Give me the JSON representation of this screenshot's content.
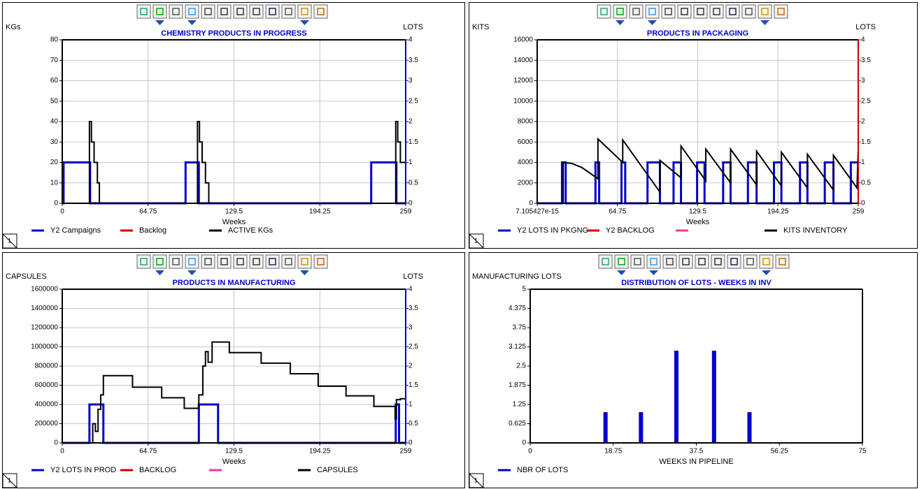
{
  "chart_data": [
    {
      "type": "line",
      "title": "CHEMISTRY PRODUCTS IN PROGRESS",
      "y_label": "KGs",
      "y2_label": "LOTS",
      "x_label": "Weeks",
      "tab": "1",
      "xlim": [
        0,
        259
      ],
      "xticks": [
        0,
        64.75,
        129.5,
        194.25,
        259
      ],
      "ylim": [
        0,
        80
      ],
      "yticks": [
        0,
        10,
        20,
        30,
        40,
        50,
        60,
        70,
        80
      ],
      "y2lim": [
        0,
        4
      ],
      "y2ticks": [
        0,
        0.5,
        1,
        1.5,
        2,
        2.5,
        3,
        3.5,
        4
      ],
      "y2_color": "#0000cc",
      "grid": true,
      "series": [
        {
          "name": "Y2 Campaigns",
          "color": "#0000cc",
          "width": 3,
          "axis": "y2",
          "step": true,
          "x": [
            0,
            1,
            21,
            93,
            103,
            233,
            252,
            259
          ],
          "values": [
            0,
            1,
            0,
            1,
            0,
            1,
            0,
            0
          ]
        },
        {
          "name": "Backlog",
          "color": "#cc0000",
          "width": 1.5,
          "step": true,
          "x": [
            0,
            259
          ],
          "values": [
            0,
            0
          ]
        },
        {
          "name": "ACTIVE KGs",
          "color": "#000000",
          "width": 2,
          "step": true,
          "x": [
            0,
            20.5,
            22,
            24,
            26.5,
            28,
            102,
            103.5,
            105.5,
            108,
            110.5,
            251.5,
            253,
            255,
            259
          ],
          "values": [
            0,
            40,
            30,
            20,
            10,
            0,
            40,
            30,
            20,
            10,
            0,
            40,
            30,
            20,
            20
          ]
        }
      ]
    },
    {
      "type": "line",
      "title": "PRODUCTS IN PACKAGING",
      "y_label": "KITS",
      "y2_label": "LOTS",
      "x_label": "Weeks",
      "tab": "1",
      "xlim": [
        7.105427e-15,
        259
      ],
      "xticks": [
        7.105427e-15,
        64.75,
        129.5,
        194.25,
        259
      ],
      "ylim": [
        0,
        16000
      ],
      "yticks": [
        0,
        2000,
        4000,
        6000,
        8000,
        10000,
        12000,
        14000,
        16000
      ],
      "y2lim": [
        0,
        4
      ],
      "y2ticks": [
        0,
        0.5,
        1,
        1.5,
        2,
        2.5,
        3,
        3.5,
        4
      ],
      "y2_color": "#cc0000",
      "grid": true,
      "series": [
        {
          "name": "Y2 LOTS IN PKGNG",
          "color": "#0000cc",
          "width": 3,
          "axis": "y2",
          "step": true,
          "x": [
            0,
            20,
            23,
            47,
            50,
            68,
            71,
            89,
            99,
            110,
            116,
            129,
            135,
            150,
            156,
            170,
            177,
            191,
            197,
            212,
            218,
            232,
            239,
            253,
            259
          ],
          "values": [
            0,
            1,
            0,
            1,
            0,
            1,
            0,
            1,
            0,
            1,
            0,
            1,
            0,
            1,
            0,
            1,
            0,
            1,
            0,
            1,
            0,
            1,
            0,
            1,
            1
          ]
        },
        {
          "name": "Y2 BACKLOG",
          "color": "#cc0000",
          "width": 1.5,
          "axis": "y2",
          "step": true,
          "x": [
            0,
            259
          ],
          "values": [
            0,
            0
          ]
        },
        {
          "color": "#ff3399",
          "width": 2,
          "axis": "y2",
          "step": true,
          "x": [
            0,
            259
          ],
          "values": [
            0,
            0
          ]
        },
        {
          "name": "KITS INVENTORY",
          "color": "#000000",
          "width": 2,
          "x": [
            0,
            21,
            21,
            28,
            36,
            42,
            49,
            49,
            69,
            69,
            99,
            99,
            116,
            116,
            136,
            136,
            156,
            156,
            177,
            177,
            197,
            197,
            218,
            218,
            239,
            239,
            258,
            259
          ],
          "values": [
            0,
            0,
            4000,
            3900,
            3500,
            3000,
            2400,
            6300,
            4000,
            6200,
            1100,
            4200,
            2500,
            5600,
            2200,
            5300,
            2000,
            5300,
            1800,
            5100,
            1700,
            5000,
            1500,
            4800,
            1300,
            4700,
            1500,
            5400
          ]
        }
      ]
    },
    {
      "type": "line",
      "title": "PRODUCTS IN MANUFACTURING",
      "y_label": "CAPSULES",
      "y2_label": "LOTS",
      "x_label": "Weeks",
      "tab": "1",
      "xlim": [
        0,
        259
      ],
      "xticks": [
        0,
        64.75,
        129.5,
        194.25,
        259
      ],
      "ylim": [
        0,
        1600000
      ],
      "yticks": [
        0,
        200000,
        400000,
        600000,
        800000,
        1000000,
        1200000,
        1400000,
        1600000
      ],
      "y2lim": [
        0,
        4
      ],
      "y2ticks": [
        0,
        0.5,
        1,
        1.5,
        2,
        2.5,
        3,
        3.5,
        4
      ],
      "y2_color": "#0000cc",
      "grid": true,
      "series": [
        {
          "name": "Y2 LOTS IN PROD",
          "color": "#0000cc",
          "width": 3,
          "axis": "y2",
          "step": true,
          "x": [
            0,
            20.5,
            31,
            103,
            117.5,
            251.5,
            254,
            259
          ],
          "values": [
            0,
            1,
            0,
            1,
            0,
            1,
            0,
            0
          ]
        },
        {
          "name": "BACKLOG",
          "color": "#cc0000",
          "width": 1.5,
          "step": true,
          "x": [
            0,
            259
          ],
          "values": [
            0,
            0
          ]
        },
        {
          "color": "#ff3399",
          "width": 2,
          "axis": "y2",
          "step": true,
          "x": [
            0,
            259
          ],
          "values": [
            0,
            0
          ]
        },
        {
          "name": "CAPSULES",
          "color": "#000000",
          "width": 2,
          "step": true,
          "x": [
            0,
            23,
            25,
            27,
            29,
            31,
            53,
            75,
            92,
            103,
            106,
            108,
            110,
            113,
            126,
            150,
            172,
            193,
            214,
            235,
            251,
            252,
            255,
            259
          ],
          "values": [
            0,
            200000,
            120000,
            350000,
            500000,
            700000,
            580000,
            470000,
            360000,
            500000,
            800000,
            950000,
            840000,
            1050000,
            940000,
            830000,
            720000,
            590000,
            490000,
            380000,
            250000,
            450000,
            460000,
            460000
          ]
        }
      ]
    },
    {
      "type": "bar",
      "title": "DISTRIBUTION OF LOTS - WEEKS IN INV",
      "y_label": "MANUFACTURING LOTS",
      "x_label": "WEEKS IN PIPELINE",
      "tab": "1",
      "xlim": [
        0,
        75
      ],
      "xticks": [
        0,
        18.75,
        37.5,
        56.25,
        75
      ],
      "ylim": [
        0,
        5
      ],
      "yticks": [
        0,
        0.625,
        1.25,
        1.875,
        2.5,
        3.125,
        3.75,
        4.375,
        5
      ],
      "grid": false,
      "series": [
        {
          "name": "NBR OF LOTS",
          "color": "#0000cc",
          "width": 3,
          "x": [
            17,
            25,
            33,
            41.5,
            49.5
          ],
          "values": [
            1,
            1,
            3,
            3,
            1
          ]
        }
      ]
    }
  ]
}
